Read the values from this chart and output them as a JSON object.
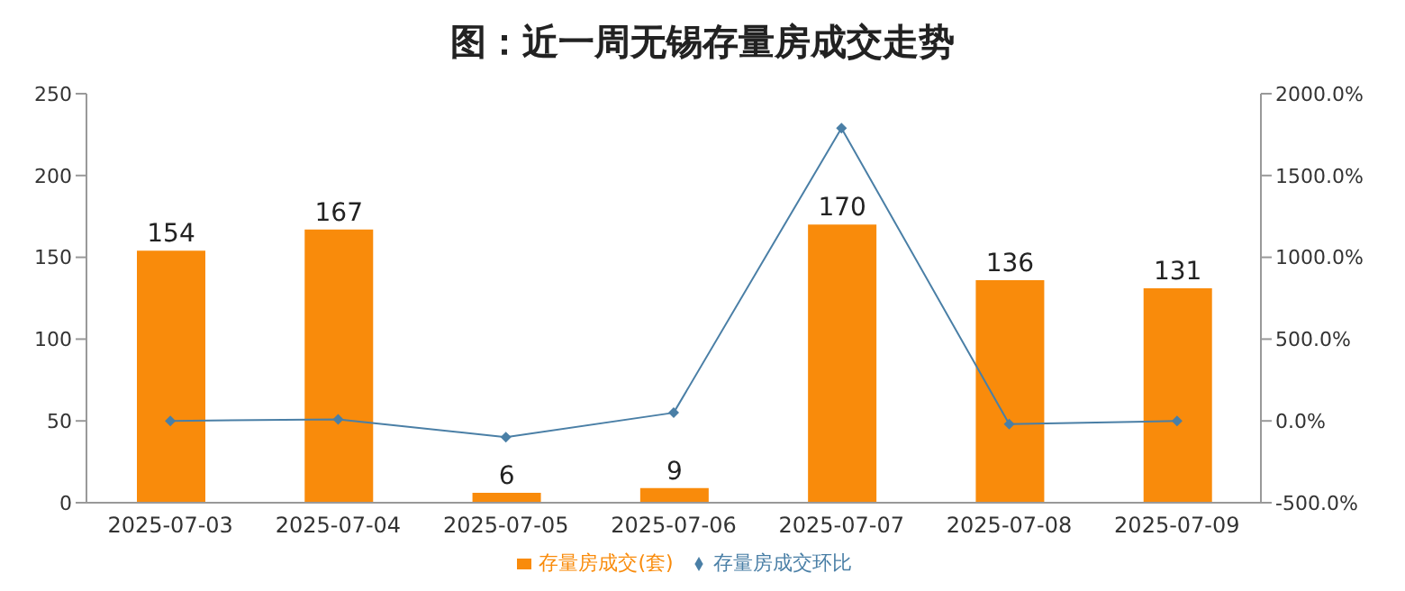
{
  "chart_data": {
    "type": "bar",
    "title": "图：近一周无锡存量房成交走势",
    "categories": [
      "2025-07-03",
      "2025-07-04",
      "2025-07-05",
      "2025-07-06",
      "2025-07-07",
      "2025-07-08",
      "2025-07-09"
    ],
    "series": [
      {
        "name": "存量房成交(套)",
        "color": "#f98b0b",
        "values": [
          154,
          167,
          6,
          9,
          170,
          136,
          131
        ],
        "value_labels": [
          "154",
          "167",
          "6",
          "9",
          "170",
          "136",
          "131"
        ]
      },
      {
        "name": "存量房成交环比",
        "type": "line",
        "axis": "y2",
        "color": "#4a7fa6",
        "values": [
          0,
          10,
          -100,
          50,
          1790,
          -20,
          0
        ]
      }
    ],
    "ylim": [
      0,
      250
    ],
    "yticks": [
      0,
      50,
      100,
      150,
      200,
      250
    ],
    "y2lim": [
      -500,
      2000
    ],
    "y2ticks": [
      {
        "value": -500,
        "label": "-500.0%"
      },
      {
        "value": 0,
        "label": "0.0%"
      },
      {
        "value": 500,
        "label": "500.0%"
      },
      {
        "value": 1000,
        "label": "1000.0%"
      },
      {
        "value": 1500,
        "label": "1500.0%"
      },
      {
        "value": 2000,
        "label": "2000.0%"
      }
    ],
    "marker": "diamond",
    "line_style": "solid",
    "grid": false,
    "legend": "bottom"
  }
}
